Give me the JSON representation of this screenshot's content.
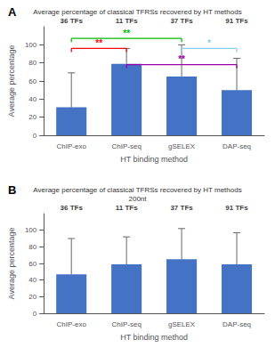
{
  "chart_data": [
    {
      "type": "bar",
      "panel_label": "A",
      "title": "Average percentage of classical TFRSs recovered by HT methods",
      "categories": [
        "ChIP-exo",
        "ChIP-seq",
        "gSELEX",
        "DAP-seq"
      ],
      "values": [
        31,
        79,
        65,
        50
      ],
      "errors_upper": [
        38,
        17,
        35,
        35
      ],
      "color": "#4472C4",
      "annotations": [
        "36 TFs",
        "11 TFs",
        "37 TFs",
        "91 TFs"
      ],
      "ylabel": "Average percentage",
      "xlabel": "HT binding method",
      "ylim": [
        0,
        120
      ],
      "yticks": [
        0,
        20,
        40,
        60,
        80,
        100
      ],
      "grid": false,
      "significance_lines": [
        {
          "x1": "ChIP-exo",
          "x2": "ChIP-seq",
          "y": 96,
          "label": "**",
          "color": "red"
        },
        {
          "x1": "ChIP-exo",
          "x2": "gSELEX",
          "y": 107,
          "label": "**",
          "color": "#00BB00"
        },
        {
          "x1": "ChIP-seq",
          "x2": "DAP-seq",
          "y": 78,
          "label": "**",
          "color": "#9900AA"
        },
        {
          "x1": "gSELEX",
          "x2": "DAP-seq",
          "y": 96,
          "label": "*",
          "color": "#87CEEB"
        }
      ]
    },
    {
      "type": "bar",
      "panel_label": "B",
      "title": "Average percentage of classical TFRSs recovered by HT methods\n200nt",
      "categories": [
        "ChIP-exo",
        "ChIP-seq",
        "gSELEX",
        "DAP-seq"
      ],
      "values": [
        47,
        59,
        65,
        59
      ],
      "errors_upper": [
        43,
        33,
        37,
        38
      ],
      "color": "#4472C4",
      "annotations": [
        "36 TFs",
        "11 TFs",
        "37 TFs",
        "91 TFs"
      ],
      "ylabel": "Average percentage",
      "xlabel": "HT binding method",
      "ylim": [
        0,
        120
      ],
      "yticks": [
        0,
        20,
        40,
        60,
        80,
        100
      ],
      "grid": false
    }
  ]
}
